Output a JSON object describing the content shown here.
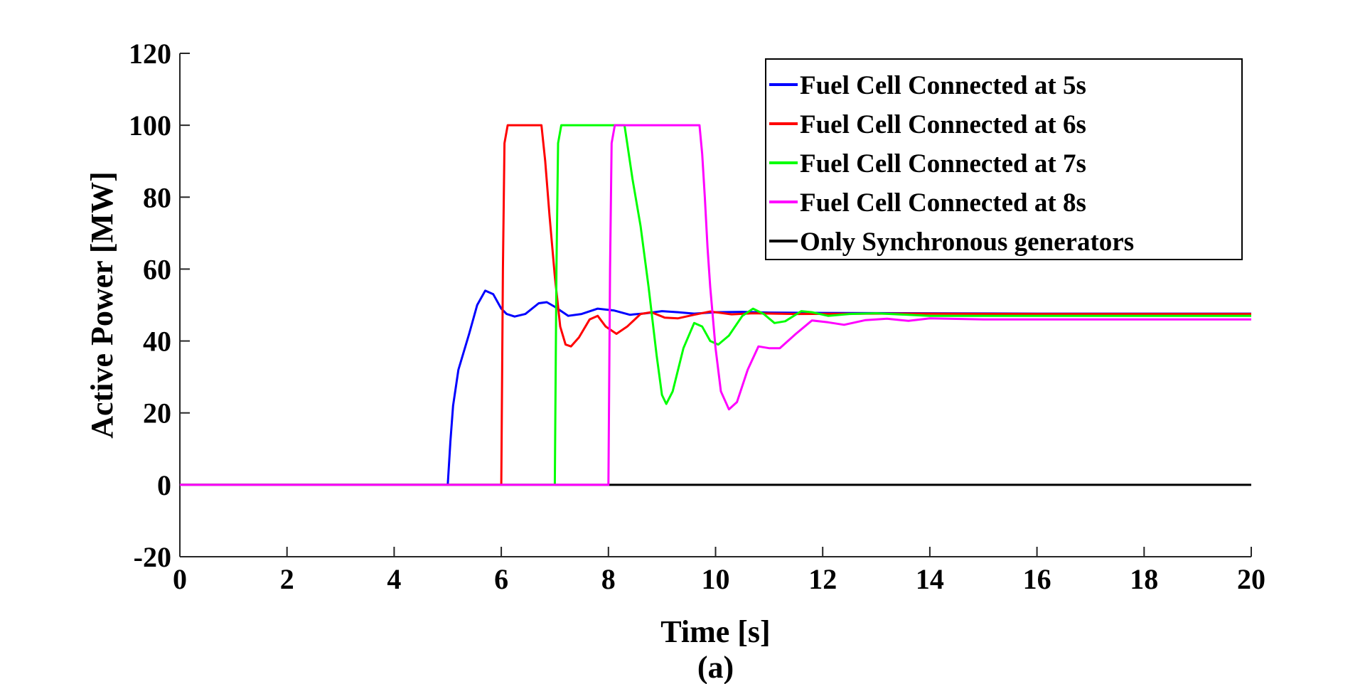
{
  "colors": {
    "blue": "#0000ff",
    "red": "#ff0000",
    "green": "#00ff00",
    "magenta": "#ff00ff",
    "black": "#000000"
  },
  "chart_data": {
    "type": "line",
    "title": "",
    "xlabel": "Time [s]",
    "ylabel": "Active Power [MW]",
    "caption": "(a)",
    "xlim": [
      0,
      20
    ],
    "ylim": [
      -20,
      120
    ],
    "xticks": [
      0,
      2,
      4,
      6,
      8,
      10,
      12,
      14,
      16,
      18,
      20
    ],
    "yticks": [
      -20,
      0,
      20,
      40,
      60,
      80,
      100,
      120
    ],
    "grid": false,
    "legend_position": "top-right",
    "series": [
      {
        "name": "Fuel Cell Connected at 5s",
        "color": "#0000ff",
        "points": [
          [
            0,
            0
          ],
          [
            5.0,
            0
          ],
          [
            5.05,
            12
          ],
          [
            5.1,
            22
          ],
          [
            5.2,
            32
          ],
          [
            5.4,
            42
          ],
          [
            5.55,
            50
          ],
          [
            5.7,
            54
          ],
          [
            5.85,
            53
          ],
          [
            6.0,
            49
          ],
          [
            6.1,
            47.5
          ],
          [
            6.25,
            46.8
          ],
          [
            6.45,
            47.5
          ],
          [
            6.7,
            50.5
          ],
          [
            6.85,
            50.8
          ],
          [
            7.0,
            49.5
          ],
          [
            7.25,
            47
          ],
          [
            7.5,
            47.5
          ],
          [
            7.8,
            49
          ],
          [
            8.1,
            48.5
          ],
          [
            8.4,
            47.3
          ],
          [
            8.7,
            47.7
          ],
          [
            9.0,
            48.3
          ],
          [
            9.3,
            48
          ],
          [
            9.6,
            47.6
          ],
          [
            10.0,
            48
          ],
          [
            10.5,
            48.1
          ],
          [
            11,
            47.9
          ],
          [
            12,
            47.8
          ],
          [
            14,
            47.7
          ],
          [
            16,
            47.6
          ],
          [
            20,
            47.6
          ]
        ]
      },
      {
        "name": "Fuel Cell Connected at 6s",
        "color": "#ff0000",
        "points": [
          [
            0,
            0
          ],
          [
            6.0,
            0
          ],
          [
            6.03,
            60
          ],
          [
            6.06,
            95
          ],
          [
            6.12,
            100
          ],
          [
            6.75,
            100
          ],
          [
            6.82,
            90
          ],
          [
            6.9,
            75
          ],
          [
            7.0,
            58
          ],
          [
            7.1,
            44
          ],
          [
            7.2,
            39
          ],
          [
            7.3,
            38.5
          ],
          [
            7.45,
            41
          ],
          [
            7.65,
            46
          ],
          [
            7.8,
            47
          ],
          [
            7.95,
            44
          ],
          [
            8.15,
            42
          ],
          [
            8.35,
            44
          ],
          [
            8.6,
            47.5
          ],
          [
            8.8,
            48
          ],
          [
            9.05,
            46.5
          ],
          [
            9.3,
            46.3
          ],
          [
            9.6,
            47.3
          ],
          [
            9.9,
            48.2
          ],
          [
            10.3,
            47.4
          ],
          [
            10.7,
            47.7
          ],
          [
            11.5,
            47.5
          ],
          [
            13,
            47.6
          ],
          [
            16,
            47.5
          ],
          [
            20,
            47.5
          ]
        ]
      },
      {
        "name": "Fuel Cell Connected at 7s",
        "color": "#00ff00",
        "points": [
          [
            0,
            0
          ],
          [
            7.0,
            0
          ],
          [
            7.03,
            60
          ],
          [
            7.06,
            95
          ],
          [
            7.12,
            100
          ],
          [
            8.3,
            100
          ],
          [
            8.35,
            95
          ],
          [
            8.45,
            85
          ],
          [
            8.6,
            72
          ],
          [
            8.75,
            55
          ],
          [
            8.9,
            36
          ],
          [
            9.0,
            25
          ],
          [
            9.08,
            22.5
          ],
          [
            9.2,
            26
          ],
          [
            9.4,
            38
          ],
          [
            9.6,
            45
          ],
          [
            9.75,
            44
          ],
          [
            9.9,
            40
          ],
          [
            10.05,
            39
          ],
          [
            10.25,
            41.5
          ],
          [
            10.5,
            47
          ],
          [
            10.7,
            49
          ],
          [
            10.9,
            47.5
          ],
          [
            11.1,
            45
          ],
          [
            11.3,
            45.5
          ],
          [
            11.6,
            48.3
          ],
          [
            11.8,
            48
          ],
          [
            12.1,
            47
          ],
          [
            12.5,
            47.5
          ],
          [
            13,
            47.7
          ],
          [
            14,
            47
          ],
          [
            16,
            47
          ],
          [
            20,
            47
          ]
        ]
      },
      {
        "name": "Fuel Cell Connected at 8s",
        "color": "#ff00ff",
        "points": [
          [
            0,
            0
          ],
          [
            8.0,
            0
          ],
          [
            8.03,
            60
          ],
          [
            8.06,
            95
          ],
          [
            8.12,
            100
          ],
          [
            9.7,
            100
          ],
          [
            9.75,
            92
          ],
          [
            9.8,
            80
          ],
          [
            9.85,
            66
          ],
          [
            9.9,
            55
          ],
          [
            10.0,
            38
          ],
          [
            10.1,
            26
          ],
          [
            10.25,
            21
          ],
          [
            10.4,
            23
          ],
          [
            10.6,
            32
          ],
          [
            10.8,
            38.5
          ],
          [
            11.0,
            38
          ],
          [
            11.2,
            38
          ],
          [
            11.5,
            42
          ],
          [
            11.8,
            45.7
          ],
          [
            12.1,
            45.2
          ],
          [
            12.4,
            44.5
          ],
          [
            12.8,
            45.8
          ],
          [
            13.2,
            46.2
          ],
          [
            13.6,
            45.6
          ],
          [
            14,
            46.3
          ],
          [
            15,
            46
          ],
          [
            16,
            46
          ],
          [
            20,
            46
          ]
        ]
      },
      {
        "name": "Only Synchronous generators",
        "color": "#000000",
        "points": [
          [
            0,
            0
          ],
          [
            20,
            0
          ]
        ]
      }
    ]
  }
}
